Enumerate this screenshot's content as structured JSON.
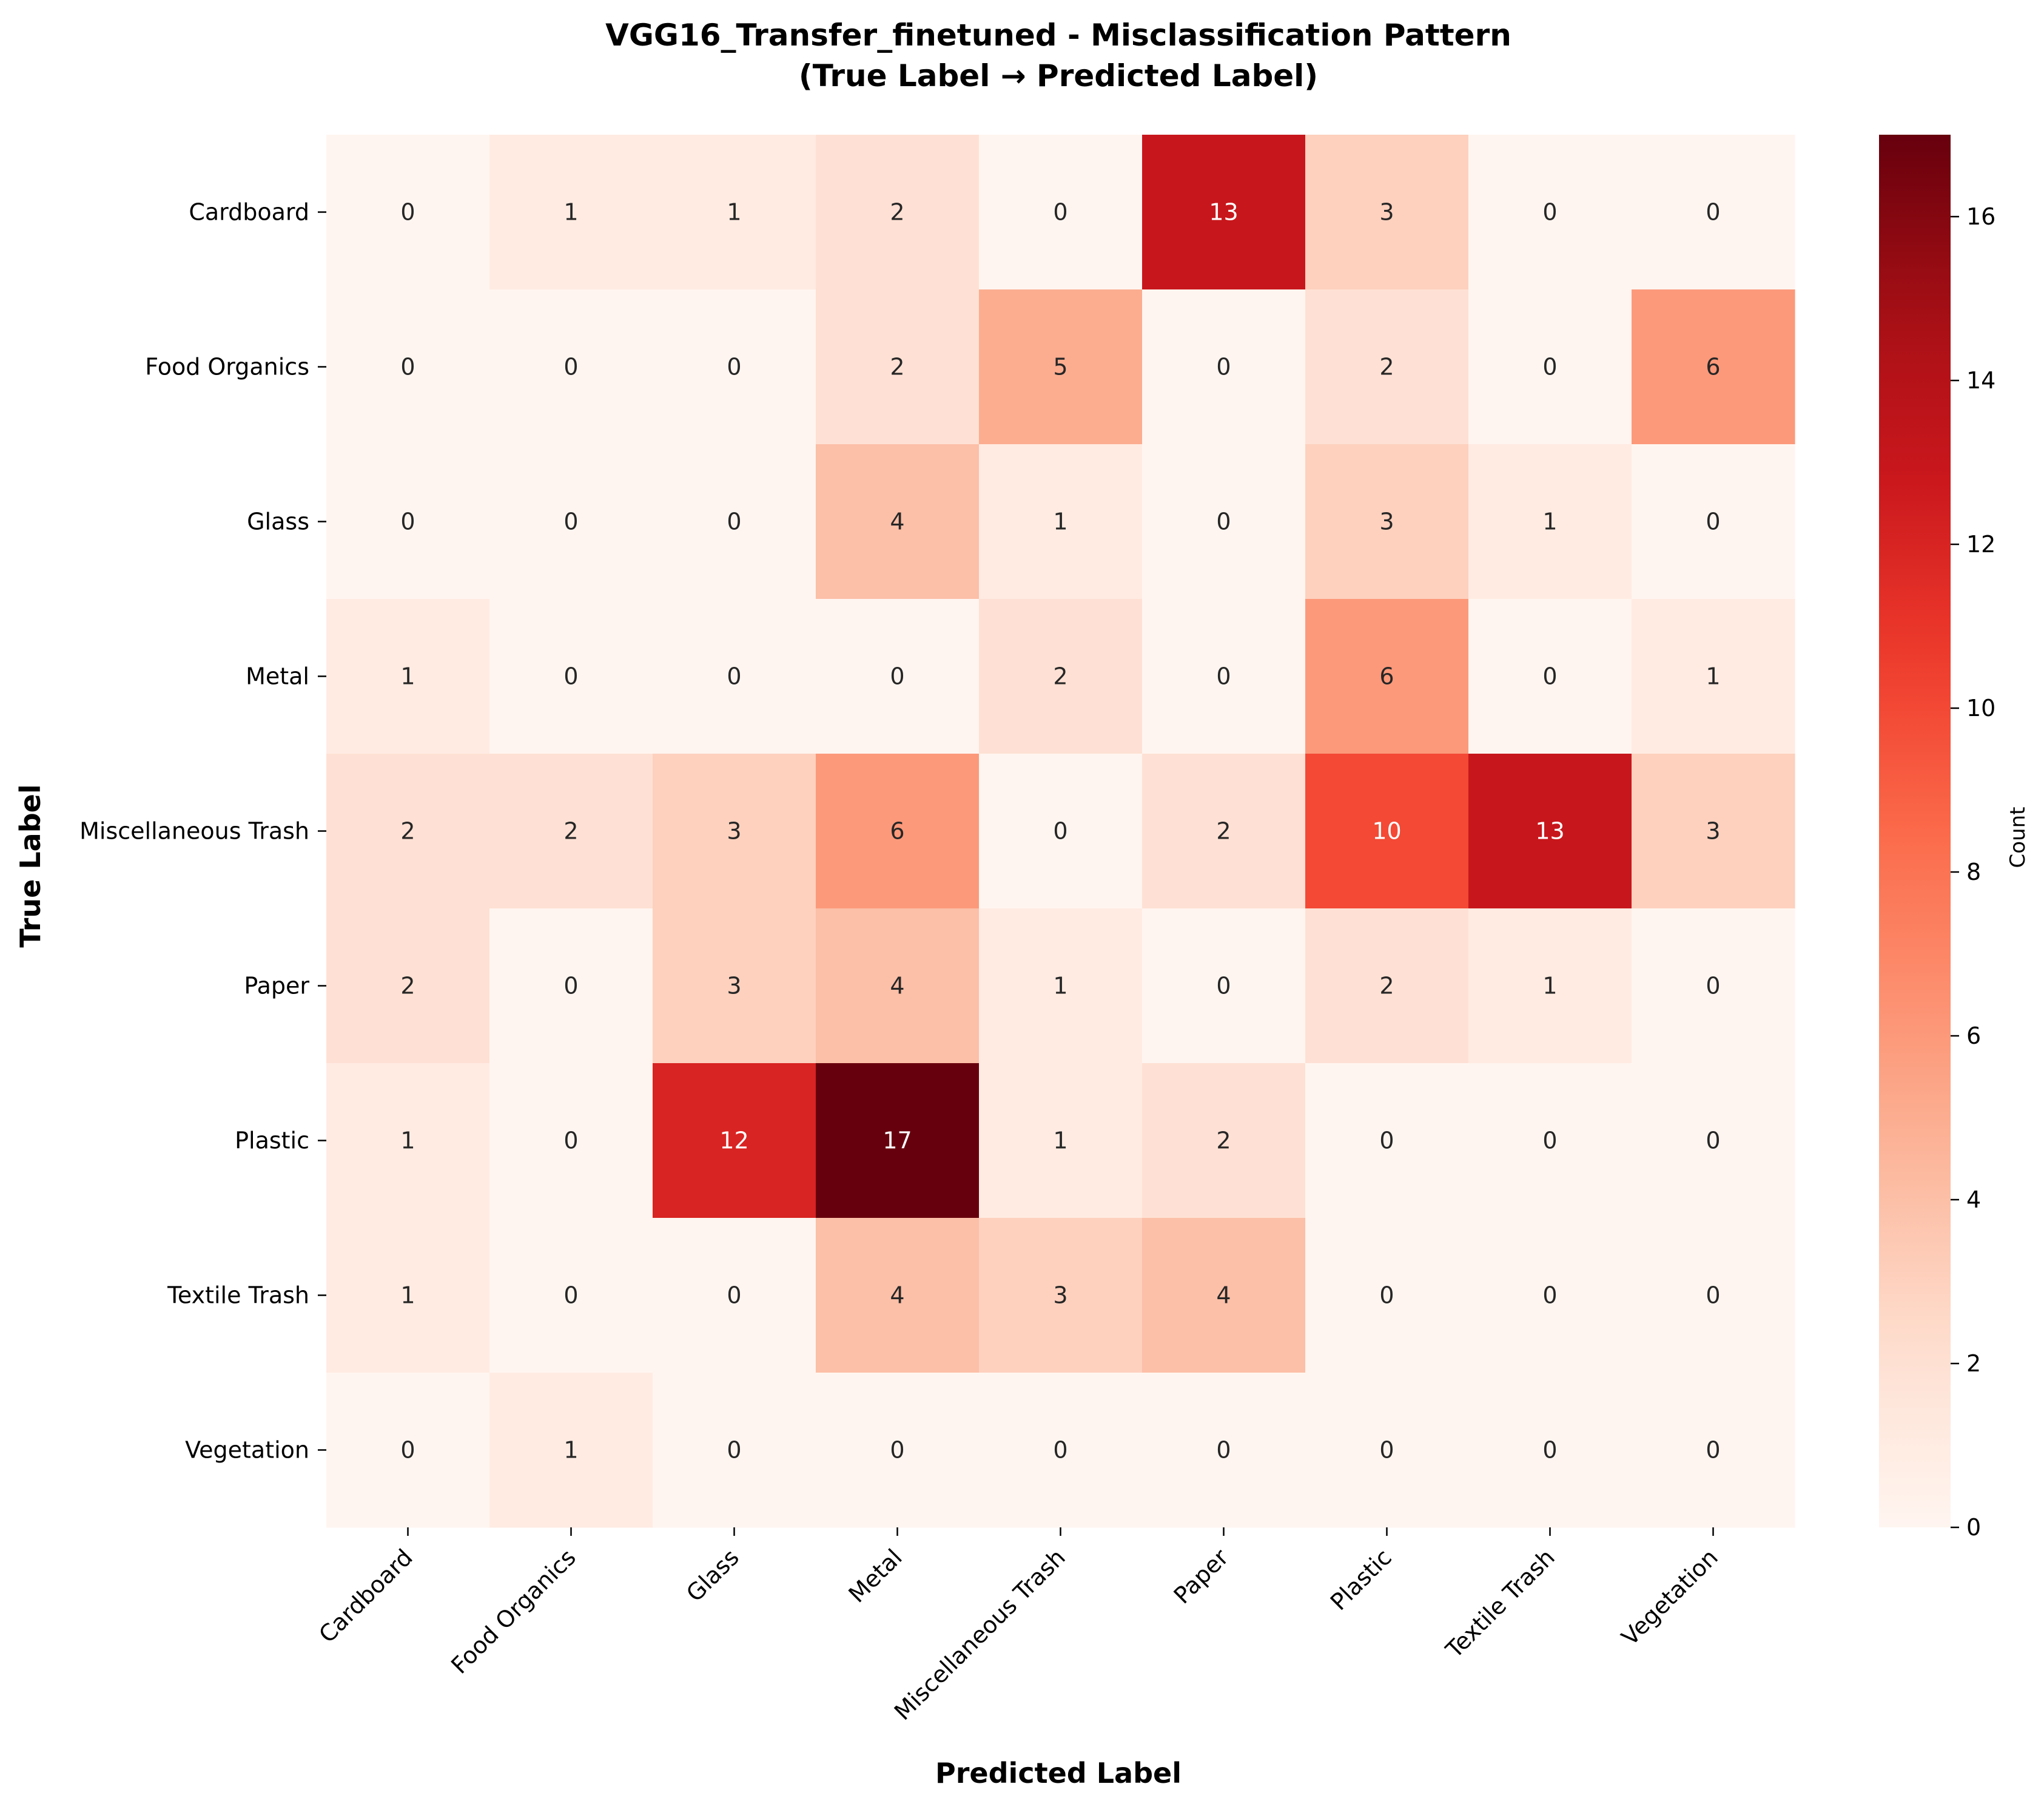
{
  "chart_data": {
    "type": "heatmap",
    "title_line1": "VGG16_Transfer_finetuned - Misclassification Pattern",
    "title_line2": "(True Label → Predicted Label)",
    "xlabel": "Predicted Label",
    "ylabel": "True Label",
    "x_categories": [
      "Cardboard",
      "Food Organics",
      "Glass",
      "Metal",
      "Miscellaneous Trash",
      "Paper",
      "Plastic",
      "Textile Trash",
      "Vegetation"
    ],
    "y_categories": [
      "Cardboard",
      "Food Organics",
      "Glass",
      "Metal",
      "Miscellaneous Trash",
      "Paper",
      "Plastic",
      "Textile Trash",
      "Vegetation"
    ],
    "values": [
      [
        0,
        1,
        1,
        2,
        0,
        13,
        3,
        0,
        0
      ],
      [
        0,
        0,
        0,
        2,
        5,
        0,
        2,
        0,
        6
      ],
      [
        0,
        0,
        0,
        4,
        1,
        0,
        3,
        1,
        0
      ],
      [
        1,
        0,
        0,
        0,
        2,
        0,
        6,
        0,
        1
      ],
      [
        2,
        2,
        3,
        6,
        0,
        2,
        10,
        13,
        3
      ],
      [
        2,
        0,
        3,
        4,
        1,
        0,
        2,
        1,
        0
      ],
      [
        1,
        0,
        12,
        17,
        1,
        2,
        0,
        0,
        0
      ],
      [
        1,
        0,
        0,
        4,
        3,
        4,
        0,
        0,
        0
      ],
      [
        0,
        1,
        0,
        0,
        0,
        0,
        0,
        0,
        0
      ]
    ],
    "colormap": "Reds",
    "vmin": 0,
    "vmax": 17,
    "colorbar": {
      "label": "Count",
      "ticks": [
        0,
        2,
        4,
        6,
        8,
        10,
        12,
        14,
        16
      ]
    },
    "colors": {
      "low": "#fff5f0",
      "high": "#67000d",
      "text_dark": "#262626",
      "text_light": "#ffffff"
    }
  }
}
